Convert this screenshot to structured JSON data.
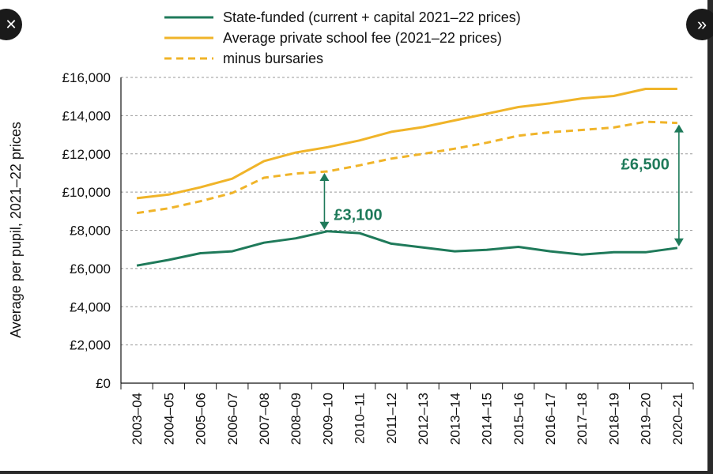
{
  "colors": {
    "state": "#1f7a5a",
    "private": "#f0b429",
    "annotation": "#1f7a5a",
    "grid": "#999999"
  },
  "nav": {
    "close_icon": "close-icon",
    "close_glyph": "✕",
    "next_icon": "double-chevron-right-icon",
    "next_glyph": "»"
  },
  "chart_data": {
    "type": "line",
    "title": "",
    "xlabel": "",
    "ylabel": "Average per pupil, 2021–22 prices",
    "ylim": [
      0,
      16000
    ],
    "yticks": [
      0,
      2000,
      4000,
      6000,
      8000,
      10000,
      12000,
      14000,
      16000
    ],
    "ytick_labels": [
      "£0",
      "£2,000",
      "£4,000",
      "£6,000",
      "£8,000",
      "£10,000",
      "£12,000",
      "£14,000",
      "£16,000"
    ],
    "grid": "horizontal dashed",
    "legend": "top",
    "categories": [
      "2003–04",
      "2004–05",
      "2005–06",
      "2006–07",
      "2007–08",
      "2008–09",
      "2009–10",
      "2010–11",
      "2011–12",
      "2012–13",
      "2013–14",
      "2014–15",
      "2015–16",
      "2016–17",
      "2017–18",
      "2018–19",
      "2019–20",
      "2020–21"
    ],
    "series": [
      {
        "name": "State-funded (current + capital 2021–22 prices)",
        "style": "solid",
        "color": "#1f7a5a",
        "values": [
          6150,
          6450,
          6800,
          6900,
          7350,
          7580,
          7950,
          7850,
          7300,
          7100,
          6900,
          6980,
          7130,
          6900,
          6730,
          6850,
          6850,
          7080
        ]
      },
      {
        "name": "Average private school fee (2021–22 prices)",
        "style": "solid",
        "color": "#f0b429",
        "values": [
          9680,
          9870,
          10250,
          10700,
          11620,
          12070,
          12350,
          12700,
          13150,
          13400,
          13750,
          14100,
          14450,
          14650,
          14900,
          15030,
          15400,
          15400
        ]
      },
      {
        "name": "minus bursaries",
        "style": "dashed",
        "color": "#f0b429",
        "values": [
          8900,
          9150,
          9520,
          9950,
          10750,
          10970,
          11080,
          11400,
          11750,
          12000,
          12270,
          12580,
          12950,
          13130,
          13250,
          13380,
          13680,
          13620
        ]
      }
    ],
    "annotations": [
      {
        "label": "£3,100",
        "category": "2009–10",
        "from": 7950,
        "to": 11080
      },
      {
        "label": "£6,500",
        "category": "2020–21",
        "from": 7080,
        "to": 13620
      }
    ]
  }
}
